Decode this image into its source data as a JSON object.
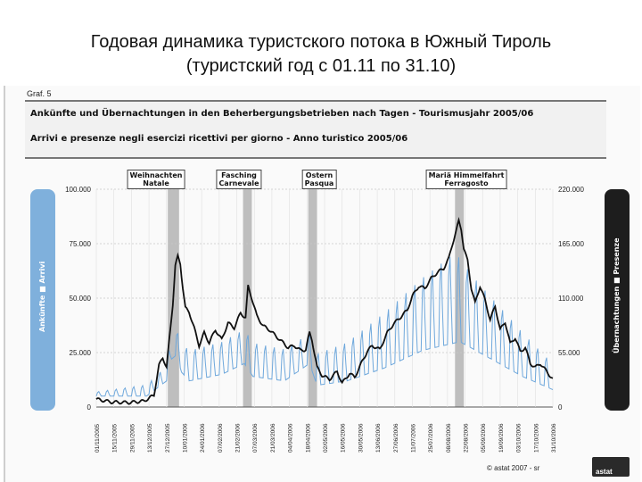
{
  "slide": {
    "title_line1": "Годовая динамика туристского потока в Южный Тироль",
    "title_line2": "(туристский год с 01.11 по 31.10)"
  },
  "figure": {
    "number": "Graf. 5",
    "title_de": "Ankünfte und Übernachtungen in den Beherbergungsbetrieben nach Tagen - Tourismusjahr 2005/06",
    "title_it": "Arrivi e presenze negli esercizi ricettivi per giorno - Anno turistico 2005/06",
    "left_axis_label": "Ankünfte ■ Arrivi",
    "right_axis_label": "Übernachtungen ■ Presenze",
    "footer": "© astat 2007 - sr",
    "logo_text": "astat"
  },
  "chart_data": {
    "type": "line",
    "left_axis": {
      "ticks": [
        "0",
        "25.000",
        "50.000",
        "75.000",
        "100.000"
      ],
      "ylim": [
        0,
        100000
      ]
    },
    "right_axis": {
      "ticks": [
        "0",
        "55.000",
        "110.000",
        "165.000",
        "220.000"
      ],
      "ylim": [
        0,
        220000
      ]
    },
    "x_tick_labels": [
      "01/11/2005",
      "15/11/2005",
      "29/11/2005",
      "13/12/2005",
      "27/12/2005",
      "10/01/2006",
      "24/01/2006",
      "07/02/2006",
      "21/02/2006",
      "07/03/2006",
      "21/03/2006",
      "04/04/2006",
      "18/04/2006",
      "02/05/2006",
      "16/05/2006",
      "30/05/2006",
      "13/06/2006",
      "27/06/2006",
      "11/07/2006",
      "25/07/2006",
      "08/08/2006",
      "22/08/2006",
      "05/09/2006",
      "19/09/2006",
      "03/10/2006",
      "17/10/2006",
      "31/10/2006"
    ],
    "holidays": [
      {
        "label": "Weihnachten\nNatale",
        "start": 57,
        "end": 66
      },
      {
        "label": "Fasching\nCarnevale",
        "start": 117,
        "end": 124
      },
      {
        "label": "Ostern\nPasqua",
        "start": 169,
        "end": 176
      },
      {
        "label": "Mariä Himmelfahrt\nFerragosto",
        "start": 286,
        "end": 293
      }
    ],
    "series": [
      {
        "name": "Übernachtungen / Presenze",
        "axis": "right",
        "color": "#111111",
        "points": [
          [
            0,
            8000
          ],
          [
            12,
            5000
          ],
          [
            26,
            4500
          ],
          [
            38,
            6000
          ],
          [
            46,
            12000
          ],
          [
            50,
            42000
          ],
          [
            53,
            50000
          ],
          [
            56,
            40000
          ],
          [
            59,
            78000
          ],
          [
            61,
            104000
          ],
          [
            63,
            143000
          ],
          [
            65,
            152000
          ],
          [
            67,
            145000
          ],
          [
            69,
            120000
          ],
          [
            71,
            100000
          ],
          [
            74,
            96000
          ],
          [
            78,
            80000
          ],
          [
            82,
            62000
          ],
          [
            86,
            75000
          ],
          [
            90,
            65000
          ],
          [
            95,
            78000
          ],
          [
            100,
            68000
          ],
          [
            105,
            85000
          ],
          [
            110,
            80000
          ],
          [
            115,
            95000
          ],
          [
            119,
            90000
          ],
          [
            121,
            122000
          ],
          [
            124,
            110000
          ],
          [
            128,
            92000
          ],
          [
            133,
            82000
          ],
          [
            138,
            78000
          ],
          [
            143,
            72000
          ],
          [
            148,
            66000
          ],
          [
            153,
            60000
          ],
          [
            158,
            62000
          ],
          [
            163,
            57000
          ],
          [
            167,
            58000
          ],
          [
            170,
            75000
          ],
          [
            172,
            68000
          ],
          [
            176,
            40000
          ],
          [
            180,
            32000
          ],
          [
            186,
            28000
          ],
          [
            192,
            36000
          ],
          [
            196,
            24000
          ],
          [
            202,
            34000
          ],
          [
            206,
            30000
          ],
          [
            212,
            46000
          ],
          [
            216,
            56000
          ],
          [
            220,
            62000
          ],
          [
            226,
            58000
          ],
          [
            232,
            75000
          ],
          [
            237,
            84000
          ],
          [
            242,
            90000
          ],
          [
            248,
            98000
          ],
          [
            252,
            112000
          ],
          [
            257,
            122000
          ],
          [
            262,
            120000
          ],
          [
            267,
            130000
          ],
          [
            272,
            136000
          ],
          [
            277,
            140000
          ],
          [
            281,
            150000
          ],
          [
            284,
            165000
          ],
          [
            287,
            178000
          ],
          [
            289,
            188000
          ],
          [
            291,
            180000
          ],
          [
            293,
            160000
          ],
          [
            296,
            148000
          ],
          [
            299,
            120000
          ],
          [
            302,
            105000
          ],
          [
            306,
            122000
          ],
          [
            310,
            108000
          ],
          [
            314,
            88000
          ],
          [
            318,
            102000
          ],
          [
            322,
            78000
          ],
          [
            326,
            86000
          ],
          [
            330,
            64000
          ],
          [
            334,
            70000
          ],
          [
            338,
            56000
          ],
          [
            342,
            60000
          ],
          [
            346,
            44000
          ],
          [
            350,
            40000
          ],
          [
            354,
            44000
          ],
          [
            359,
            36000
          ],
          [
            364,
            28000
          ]
        ]
      },
      {
        "name": "Ankünfte / Arrivi",
        "axis": "left",
        "color": "#6fa8dc",
        "weekly": true,
        "base_points": [
          [
            0,
            5000
          ],
          [
            40,
            5000
          ],
          [
            56,
            12000
          ],
          [
            60,
            22000
          ],
          [
            64,
            24000
          ],
          [
            68,
            16000
          ],
          [
            74,
            12000
          ],
          [
            100,
            15000
          ],
          [
            118,
            20000
          ],
          [
            125,
            14000
          ],
          [
            150,
            12000
          ],
          [
            170,
            20000
          ],
          [
            176,
            10000
          ],
          [
            200,
            12000
          ],
          [
            230,
            18000
          ],
          [
            260,
            26000
          ],
          [
            290,
            30000
          ],
          [
            315,
            22000
          ],
          [
            340,
            14000
          ],
          [
            364,
            8000
          ]
        ],
        "amp_points": [
          [
            0,
            2000
          ],
          [
            50,
            6000
          ],
          [
            70,
            14000
          ],
          [
            120,
            16000
          ],
          [
            170,
            14000
          ],
          [
            200,
            18000
          ],
          [
            230,
            26000
          ],
          [
            260,
            34000
          ],
          [
            285,
            42000
          ],
          [
            300,
            34000
          ],
          [
            330,
            24000
          ],
          [
            364,
            12000
          ]
        ]
      }
    ]
  }
}
